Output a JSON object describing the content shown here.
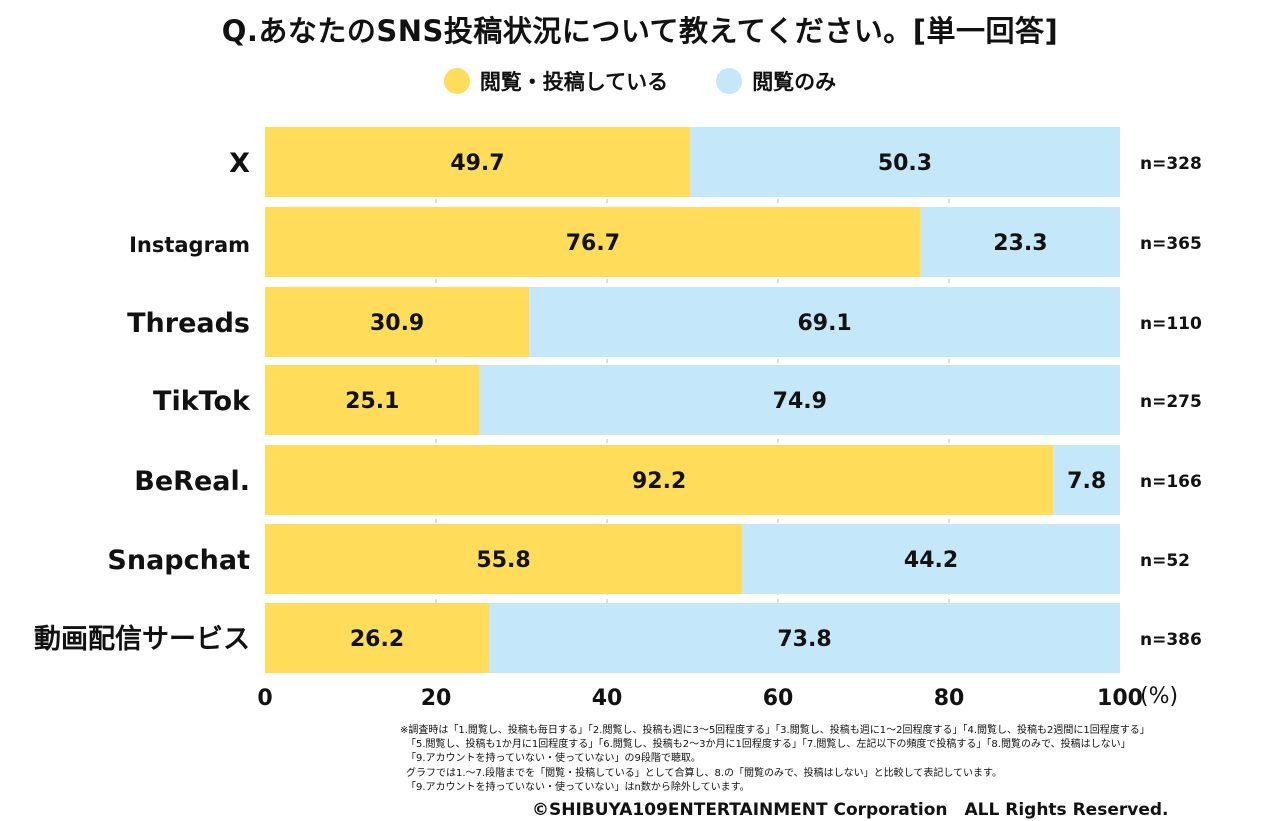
{
  "title": "Q.あなたのSNS投稿状況について教えてください。[単一回答]",
  "legend": [
    {
      "label": "閲覧・投稿している",
      "color": "#FFDC5A"
    },
    {
      "label": "閲覧のみ",
      "color": "#C4E7FA"
    }
  ],
  "chart_data": {
    "type": "bar",
    "orientation": "horizontal",
    "stacked": true,
    "categories": [
      "X",
      "Instagram",
      "Threads",
      "TikTok",
      "BeReal.",
      "Snapchat",
      "動画配信サービス"
    ],
    "series": [
      {
        "name": "閲覧・投稿している",
        "color": "#FFDC5A",
        "values": [
          49.7,
          76.7,
          30.9,
          25.1,
          92.2,
          55.8,
          26.2
        ]
      },
      {
        "name": "閲覧のみ",
        "color": "#C4E7FA",
        "values": [
          50.3,
          23.3,
          69.1,
          74.9,
          7.8,
          44.2,
          73.8
        ]
      }
    ],
    "n_labels": [
      "n=328",
      "n=365",
      "n=110",
      "n=275",
      "n=166",
      "n=52",
      "n=386"
    ],
    "xlim": [
      0,
      100
    ],
    "xticks": [
      "0",
      "20",
      "40",
      "60",
      "80",
      "100"
    ],
    "xunit": "(%)",
    "grid": true
  },
  "notes": [
    "※調査時は「1.閲覧し、投稿も毎日する」「2.閲覧し、投稿も週に3〜5回程度する」「3.閲覧し、投稿も週に1〜2回程度する」「4.閲覧し、投稿も2週間に1回程度する」",
    "「5.閲覧し、投稿も1か月に1回程度する」「6.閲覧し、投稿も2〜3か月に1回程度する」「7.閲覧し、左記以下の頻度で投稿する」「8.閲覧のみで、投稿はしない」",
    "「9.アカウントを持っていない・使っていない」の9段階で聴取。",
    "グラフでは1.〜7.段階までを「閲覧・投稿している」として合算し、8.の「閲覧のみで、投稿はしない」と比較して表記しています。",
    "「9.アカウントを持っていない・使っていない」はn数から除外しています。"
  ],
  "copyright": "©SHIBUYA109ENTERTAINMENT Corporation　ALL Rights Reserved."
}
